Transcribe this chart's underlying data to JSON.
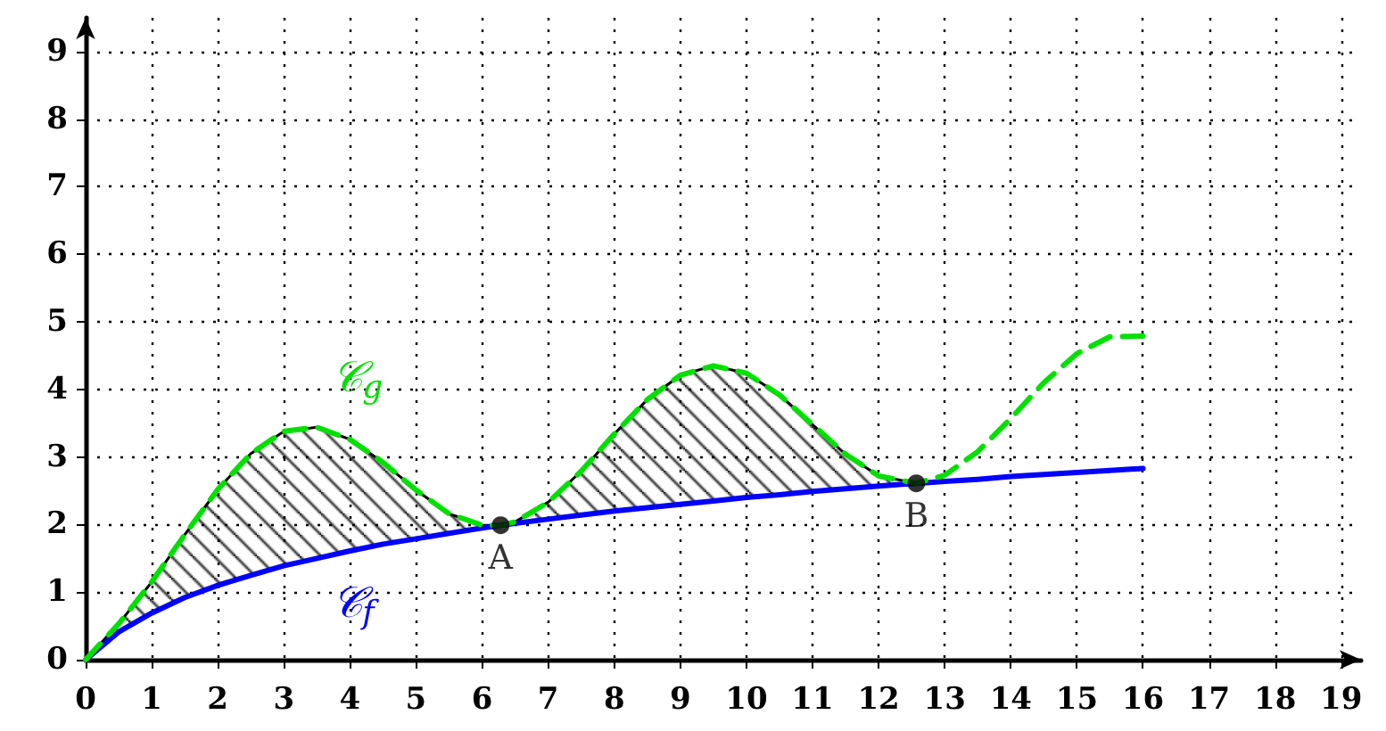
{
  "chart_data": {
    "type": "line",
    "xlim": [
      0,
      19.3
    ],
    "ylim": [
      0,
      9.5
    ],
    "xticks": [
      0,
      1,
      2,
      3,
      4,
      5,
      6,
      7,
      8,
      9,
      10,
      11,
      12,
      13,
      14,
      15,
      16,
      17,
      18,
      19
    ],
    "yticks": [
      0,
      1,
      2,
      3,
      4,
      5,
      6,
      7,
      8,
      9
    ],
    "grid": true,
    "marker": "none",
    "series": [
      {
        "name": "𝒞$_{f}$",
        "color": "#0000ff",
        "line_style": "solid",
        "x": [
          0,
          0.5,
          1,
          1.5,
          2,
          2.5,
          3,
          3.5,
          4,
          4.5,
          5,
          5.5,
          6,
          6.28,
          6.5,
          7,
          7.5,
          8,
          8.5,
          9,
          9.5,
          10,
          10.5,
          11,
          11.5,
          12,
          12.57,
          13,
          13.5,
          14,
          14.5,
          15,
          15.5,
          16
        ],
        "values": [
          0,
          0.41,
          0.69,
          0.92,
          1.1,
          1.25,
          1.39,
          1.5,
          1.61,
          1.71,
          1.79,
          1.87,
          1.95,
          1.99,
          2.02,
          2.08,
          2.14,
          2.2,
          2.25,
          2.3,
          2.35,
          2.4,
          2.44,
          2.49,
          2.53,
          2.57,
          2.61,
          2.64,
          2.67,
          2.71,
          2.74,
          2.77,
          2.8,
          2.83
        ]
      },
      {
        "name": "𝒞$_{g}$",
        "color": "#00e000",
        "line_style": "dashed",
        "x": [
          0,
          0.5,
          1,
          1.5,
          2,
          2.5,
          3,
          3.5,
          4,
          4.5,
          5,
          5.5,
          6,
          6.28,
          6.5,
          7,
          7.5,
          8,
          8.5,
          9,
          9.5,
          10,
          10.5,
          11,
          11.5,
          12,
          12.57,
          13,
          13.5,
          14,
          14.5,
          15,
          15.5,
          16
        ],
        "values": [
          0,
          0.53,
          1.15,
          1.85,
          2.52,
          3.05,
          3.38,
          3.44,
          3.26,
          2.92,
          2.51,
          2.16,
          1.99,
          1.99,
          2.04,
          2.33,
          2.79,
          3.34,
          3.85,
          4.21,
          4.35,
          4.24,
          3.92,
          3.48,
          3.04,
          2.72,
          2.61,
          2.73,
          3.08,
          3.57,
          4.1,
          4.53,
          4.78,
          4.79
        ],
        "lower": [
          0,
          0.41,
          0.69,
          0.92,
          1.1,
          1.25,
          1.39,
          1.5,
          1.61,
          1.71,
          1.79,
          1.87,
          1.95,
          1.99,
          2.02,
          2.08,
          2.14,
          2.2,
          2.25,
          2.3,
          2.35,
          2.4,
          2.44,
          2.49,
          2.53,
          2.57,
          2.61,
          null,
          null,
          null,
          null,
          null,
          null,
          null
        ],
        "upper": [
          0,
          0.53,
          1.15,
          1.85,
          2.52,
          3.05,
          3.38,
          3.44,
          3.26,
          2.92,
          2.51,
          2.16,
          1.99,
          1.99,
          2.04,
          2.33,
          2.79,
          3.34,
          3.85,
          4.21,
          4.35,
          4.24,
          3.92,
          3.48,
          3.04,
          2.72,
          2.61,
          null,
          null,
          null,
          null,
          null,
          null,
          null
        ]
      }
    ],
    "annotations": [
      {
        "text": "A",
        "x": 6.28,
        "y": 1.99
      },
      {
        "text": "B",
        "x": 12.57,
        "y": 2.61
      }
    ]
  }
}
